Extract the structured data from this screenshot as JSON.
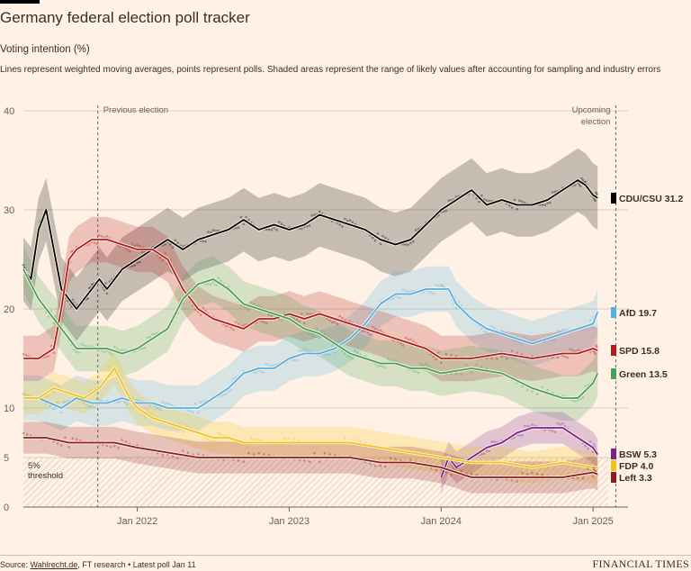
{
  "header": {
    "title": "Germany federal election poll tracker",
    "subtitle": "Voting intention (%)",
    "description": "Lines represent weighted moving averages, points represent polls. Shaded areas represent the range of likely values after accounting for sampling and industry errors"
  },
  "footer": {
    "source_link": "Wahlrecht.de",
    "source_rest": ", FT research • Latest poll Jan 11",
    "brand": "FINANCIAL TIMES"
  },
  "chart_data": {
    "type": "line",
    "title": "Germany federal election poll tracker",
    "ylabel": "Voting intention (%)",
    "xlabel": "",
    "ylim": [
      0,
      40
    ],
    "xlim": [
      2021.25,
      2025.1
    ],
    "y_ticks": [
      {
        "value": 0,
        "label": "0"
      },
      {
        "value": 5,
        "label": "5"
      },
      {
        "value": 10,
        "label": "10"
      },
      {
        "value": 20,
        "label": "20"
      },
      {
        "value": 30,
        "label": "30"
      },
      {
        "value": 40,
        "label": "40"
      }
    ],
    "x_ticks": [
      {
        "value": 2022.0,
        "label": "Jan 2022"
      },
      {
        "value": 2023.0,
        "label": "Jan 2023"
      },
      {
        "value": 2024.0,
        "label": "Jan 2024"
      },
      {
        "value": 2025.0,
        "label": "Jan 2025"
      }
    ],
    "annotations": [
      {
        "x": 2021.74,
        "lines": [
          "Previous election"
        ]
      },
      {
        "x": 2025.15,
        "lines": [
          "Upcoming",
          "election"
        ]
      }
    ],
    "threshold": {
      "value": 5,
      "lines": [
        "5%",
        "threshold"
      ]
    },
    "series": [
      {
        "name": "CDU/CSU",
        "latest": "31.2",
        "color": "#000000",
        "x": [
          2021.25,
          2021.3,
          2021.35,
          2021.4,
          2021.45,
          2021.5,
          2021.55,
          2021.6,
          2021.65,
          2021.7,
          2021.75,
          2021.8,
          2021.9,
          2022.0,
          2022.1,
          2022.2,
          2022.3,
          2022.4,
          2022.5,
          2022.6,
          2022.7,
          2022.8,
          2022.9,
          2023.0,
          2023.1,
          2023.2,
          2023.3,
          2023.4,
          2023.5,
          2023.6,
          2023.7,
          2023.8,
          2023.9,
          2024.0,
          2024.1,
          2024.2,
          2024.3,
          2024.4,
          2024.5,
          2024.6,
          2024.7,
          2024.8,
          2024.9,
          2024.95,
          2025.0,
          2025.03
        ],
        "y": [
          24,
          23,
          28,
          30,
          26,
          22,
          21,
          20,
          21,
          22,
          23,
          22,
          24,
          25,
          26,
          27,
          26,
          27,
          27.5,
          28,
          29,
          28,
          28.5,
          28,
          28.5,
          29.5,
          29,
          28.5,
          28,
          27,
          26.5,
          27,
          28.5,
          30,
          31,
          32,
          30.5,
          31,
          30.5,
          30.5,
          31,
          32,
          33,
          32.5,
          31.5,
          31.2
        ]
      },
      {
        "name": "AfD",
        "latest": "19.7",
        "color": "#4fb0e5",
        "x": [
          2021.25,
          2021.35,
          2021.5,
          2021.6,
          2021.7,
          2021.8,
          2021.9,
          2022.0,
          2022.1,
          2022.2,
          2022.3,
          2022.4,
          2022.5,
          2022.6,
          2022.7,
          2022.8,
          2022.9,
          2023.0,
          2023.1,
          2023.2,
          2023.3,
          2023.4,
          2023.5,
          2023.6,
          2023.7,
          2023.8,
          2023.9,
          2024.0,
          2024.05,
          2024.1,
          2024.2,
          2024.3,
          2024.4,
          2024.5,
          2024.6,
          2024.7,
          2024.8,
          2024.9,
          2025.0,
          2025.03
        ],
        "y": [
          11,
          11,
          10,
          11,
          10.5,
          10.5,
          11,
          10.5,
          10.5,
          10,
          10,
          10,
          11,
          12,
          13.5,
          14,
          14,
          15,
          15.5,
          15.5,
          16,
          17,
          18.5,
          20.5,
          21.5,
          21.5,
          22,
          22,
          22,
          20.5,
          19,
          18,
          17.5,
          17,
          16.5,
          17,
          17.5,
          18,
          18.5,
          19.7
        ]
      },
      {
        "name": "SPD",
        "latest": "15.8",
        "color": "#b31b1b",
        "x": [
          2021.25,
          2021.35,
          2021.45,
          2021.5,
          2021.55,
          2021.6,
          2021.7,
          2021.8,
          2021.9,
          2022.0,
          2022.1,
          2022.2,
          2022.3,
          2022.4,
          2022.5,
          2022.6,
          2022.7,
          2022.8,
          2022.9,
          2023.0,
          2023.1,
          2023.2,
          2023.3,
          2023.4,
          2023.5,
          2023.6,
          2023.7,
          2023.8,
          2023.9,
          2024.0,
          2024.2,
          2024.4,
          2024.6,
          2024.8,
          2024.9,
          2025.0,
          2025.03
        ],
        "y": [
          15,
          15,
          16,
          20,
          25,
          26,
          27,
          27,
          26.5,
          26,
          26,
          25,
          22,
          20,
          19,
          18.5,
          18,
          19,
          19,
          19.5,
          19,
          19.5,
          19,
          18.5,
          18,
          17.5,
          17,
          16.5,
          16,
          15,
          15,
          15.5,
          15,
          15.5,
          15.5,
          16,
          15.8
        ]
      },
      {
        "name": "Green",
        "latest": "13.5",
        "color": "#44a356",
        "x": [
          2021.25,
          2021.35,
          2021.45,
          2021.5,
          2021.6,
          2021.7,
          2021.8,
          2021.9,
          2022.0,
          2022.1,
          2022.2,
          2022.3,
          2022.4,
          2022.5,
          2022.6,
          2022.7,
          2022.8,
          2022.9,
          2023.0,
          2023.1,
          2023.2,
          2023.3,
          2023.4,
          2023.5,
          2023.6,
          2023.7,
          2023.8,
          2023.9,
          2024.0,
          2024.2,
          2024.4,
          2024.6,
          2024.8,
          2024.9,
          2025.0,
          2025.03
        ],
        "y": [
          24,
          21,
          19,
          18,
          16,
          16,
          16,
          15.5,
          16,
          17,
          18,
          21,
          22.5,
          23,
          22,
          20.5,
          20,
          19.5,
          19,
          18,
          17.5,
          16.5,
          15.5,
          15,
          14.5,
          14.5,
          14,
          14,
          13.5,
          14,
          13.5,
          12,
          11,
          11,
          12.5,
          13.5
        ]
      },
      {
        "name": "BSW",
        "latest": "5.3",
        "color": "#7a1f8f",
        "x": [
          2024.0,
          2024.05,
          2024.1,
          2024.2,
          2024.3,
          2024.4,
          2024.5,
          2024.6,
          2024.7,
          2024.8,
          2024.9,
          2025.0,
          2025.03
        ],
        "y": [
          3,
          5,
          4,
          5,
          6,
          6.5,
          7.5,
          8,
          8,
          8,
          7,
          6,
          5.3
        ]
      },
      {
        "name": "FDP",
        "latest": "4.0",
        "color": "#f1c40f",
        "x": [
          2021.25,
          2021.35,
          2021.45,
          2021.55,
          2021.65,
          2021.75,
          2021.85,
          2021.95,
          2022.0,
          2022.1,
          2022.2,
          2022.3,
          2022.4,
          2022.5,
          2022.6,
          2022.7,
          2022.8,
          2022.9,
          2023.0,
          2023.2,
          2023.4,
          2023.6,
          2023.8,
          2024.0,
          2024.2,
          2024.4,
          2024.6,
          2024.8,
          2025.0,
          2025.03
        ],
        "y": [
          11,
          11,
          12,
          11.5,
          11,
          12,
          14,
          11,
          10,
          9,
          8.5,
          8,
          7.5,
          7,
          7,
          6.5,
          6.5,
          6.5,
          6.5,
          6.5,
          6.5,
          6,
          5.5,
          5,
          4.5,
          4.5,
          4,
          4.5,
          4,
          4
        ]
      },
      {
        "name": "Left",
        "latest": "3.3",
        "color": "#8c1d1d",
        "x": [
          2021.25,
          2021.4,
          2021.55,
          2021.7,
          2021.85,
          2022.0,
          2022.2,
          2022.4,
          2022.6,
          2022.8,
          2023.0,
          2023.2,
          2023.4,
          2023.6,
          2023.8,
          2024.0,
          2024.2,
          2024.4,
          2024.6,
          2024.8,
          2025.0,
          2025.03
        ],
        "y": [
          7,
          7,
          6.5,
          6.5,
          6.5,
          6,
          5.5,
          5,
          5,
          5,
          5,
          5,
          5,
          4.5,
          4.5,
          4,
          3,
          3,
          3,
          3,
          3.5,
          3.3
        ]
      }
    ]
  }
}
